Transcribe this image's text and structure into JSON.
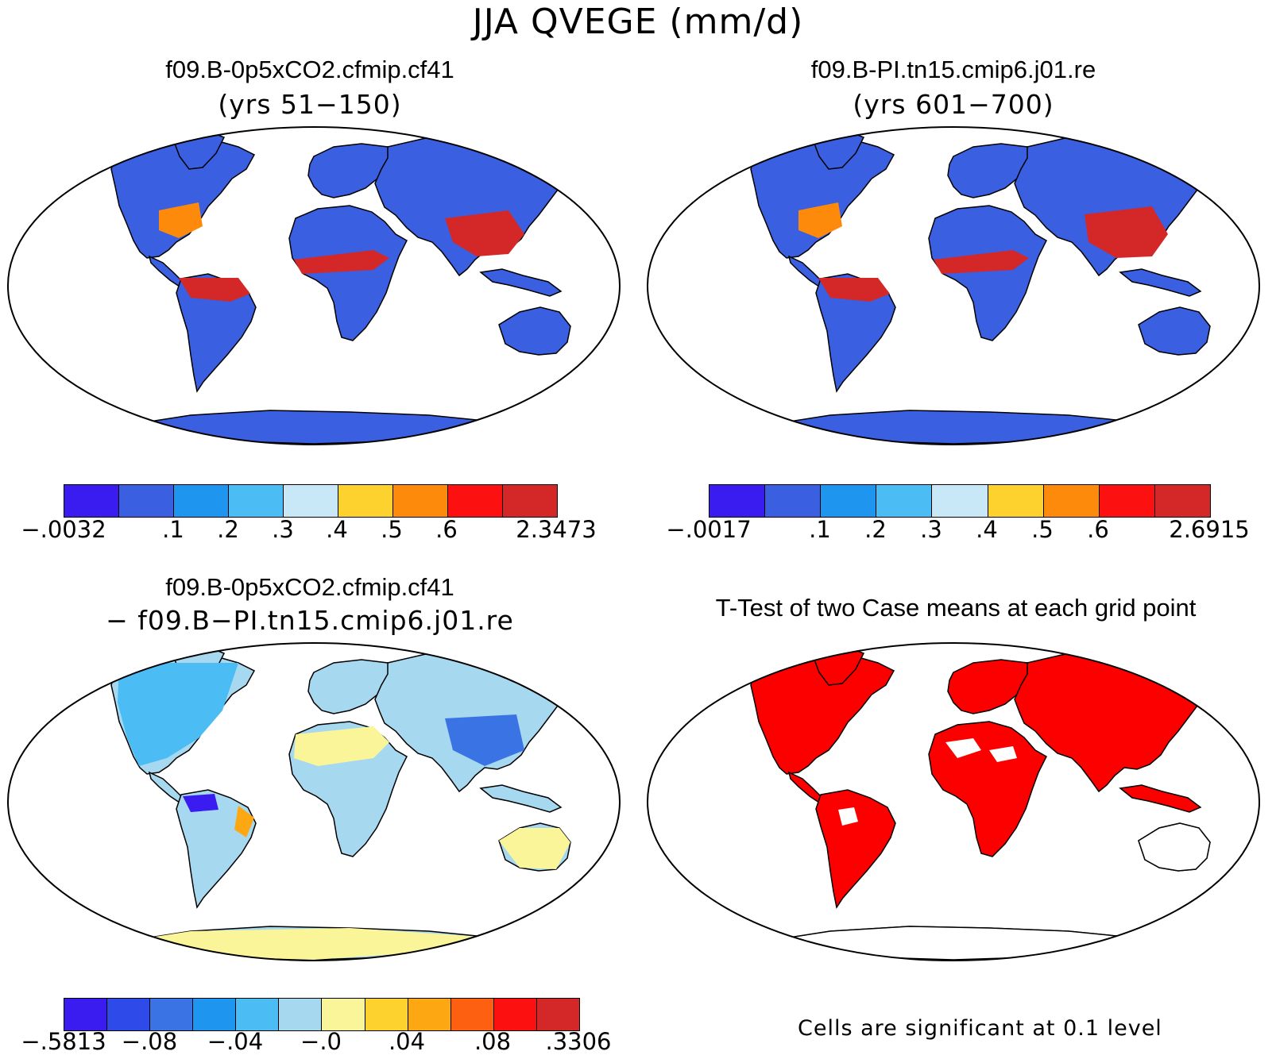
{
  "title": "JJA QVEGE (mm/d)",
  "panels": [
    {
      "id": "case1",
      "title": "f09.B-0p5xCO2.cfmip.cf41",
      "subtitle": "(yrs 51−150)",
      "colorbar": {
        "colors": [
          "#3a1cf0",
          "#3a5fe0",
          "#1e96f0",
          "#4cbcf4",
          "#c8e8f8",
          "#fdd22e",
          "#fd8a0a",
          "#fc1010",
          "#d42828"
        ],
        "tick_labels": [
          "−.0032",
          ".1",
          ".2",
          ".3",
          ".4",
          ".5",
          ".6",
          "2.3473"
        ]
      }
    },
    {
      "id": "case2",
      "title": "f09.B-PI.tn15.cmip6.j01.re",
      "subtitle": "(yrs 601−700)",
      "colorbar": {
        "colors": [
          "#3a1cf0",
          "#3a5fe0",
          "#1e96f0",
          "#4cbcf4",
          "#c8e8f8",
          "#fdd22e",
          "#fd8a0a",
          "#fc1010",
          "#d42828"
        ],
        "tick_labels": [
          "−.0017",
          ".1",
          ".2",
          ".3",
          ".4",
          ".5",
          ".6",
          "2.6915"
        ]
      }
    },
    {
      "id": "diff",
      "title": "f09.B-0p5xCO2.cfmip.cf41",
      "subtitle": "− f09.B−PI.tn15.cmip6.j01.re",
      "colorbar": {
        "colors": [
          "#3a1cf0",
          "#2e4ae8",
          "#3a74e4",
          "#1e96f0",
          "#4cbcf4",
          "#a6d8f0",
          "#fbf59a",
          "#fdd22e",
          "#fda812",
          "#fc6010",
          "#fc1010",
          "#d42828"
        ],
        "tick_labels": [
          "−.5813",
          "−.08",
          "−.04",
          "−.0",
          ".04",
          ".08",
          ".3306"
        ]
      }
    },
    {
      "id": "ttest",
      "title": "T-Test of two Case means at each grid point",
      "note": "Cells are significant at 0.1 level",
      "colors": {
        "significant": "#fc0000"
      }
    }
  ]
}
